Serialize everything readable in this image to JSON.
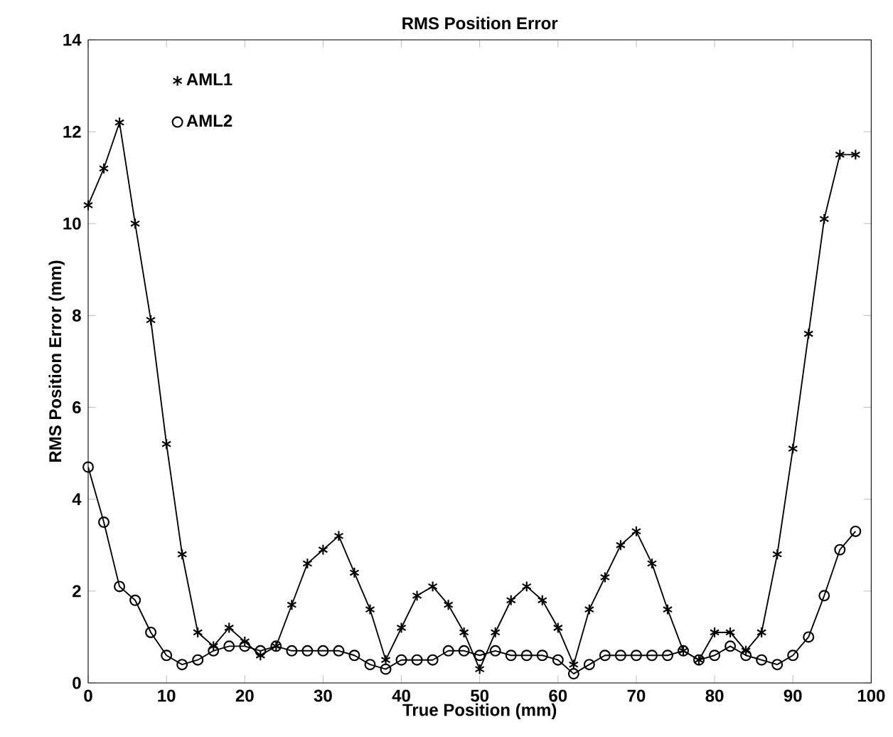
{
  "chart_data": {
    "type": "line",
    "title": "RMS Position Error",
    "xlabel": "True Position (mm)",
    "ylabel": "RMS Position Error (mm)",
    "x": [
      0,
      2,
      4,
      6,
      8,
      10,
      12,
      14,
      16,
      18,
      20,
      22,
      24,
      26,
      28,
      30,
      32,
      34,
      36,
      38,
      40,
      42,
      44,
      46,
      48,
      50,
      52,
      54,
      56,
      58,
      60,
      62,
      64,
      66,
      68,
      70,
      72,
      74,
      76,
      78,
      80,
      82,
      84,
      86,
      88,
      90,
      92,
      94,
      96,
      98
    ],
    "series": [
      {
        "name": "AML1",
        "color": "#000000",
        "marker": "cross",
        "values": [
          10.4,
          11.2,
          12.2,
          10.0,
          7.9,
          5.2,
          2.8,
          1.1,
          0.8,
          1.2,
          0.9,
          0.6,
          0.8,
          1.7,
          2.6,
          2.9,
          3.2,
          2.4,
          1.6,
          0.5,
          1.2,
          1.9,
          2.1,
          1.7,
          1.1,
          0.3,
          1.1,
          1.8,
          2.1,
          1.8,
          1.2,
          0.4,
          1.6,
          2.3,
          3.0,
          3.3,
          2.6,
          1.6,
          0.7,
          0.5,
          1.1,
          1.1,
          0.7,
          1.1,
          2.8,
          5.1,
          7.6,
          10.1,
          11.5,
          11.5
        ]
      },
      {
        "name": "AML2",
        "color": "#000000",
        "marker": "circle",
        "values": [
          4.7,
          3.5,
          2.1,
          1.8,
          1.1,
          0.6,
          0.4,
          0.5,
          0.7,
          0.8,
          0.8,
          0.7,
          0.8,
          0.7,
          0.7,
          0.7,
          0.7,
          0.6,
          0.4,
          0.3,
          0.5,
          0.5,
          0.5,
          0.7,
          0.7,
          0.6,
          0.7,
          0.6,
          0.6,
          0.6,
          0.5,
          0.2,
          0.4,
          0.6,
          0.6,
          0.6,
          0.6,
          0.6,
          0.7,
          0.5,
          0.6,
          0.8,
          0.6,
          0.5,
          0.4,
          0.6,
          1.0,
          1.9,
          2.9,
          3.3
        ]
      }
    ],
    "xlim": [
      0,
      100
    ],
    "xticks": [
      0,
      10,
      20,
      30,
      40,
      50,
      60,
      70,
      80,
      90,
      100
    ],
    "ylim": [
      0,
      14
    ],
    "yticks": [
      0,
      2,
      4,
      6,
      8,
      10,
      12,
      14
    ],
    "legend": "top left",
    "line_style": "solid",
    "grid": false
  }
}
